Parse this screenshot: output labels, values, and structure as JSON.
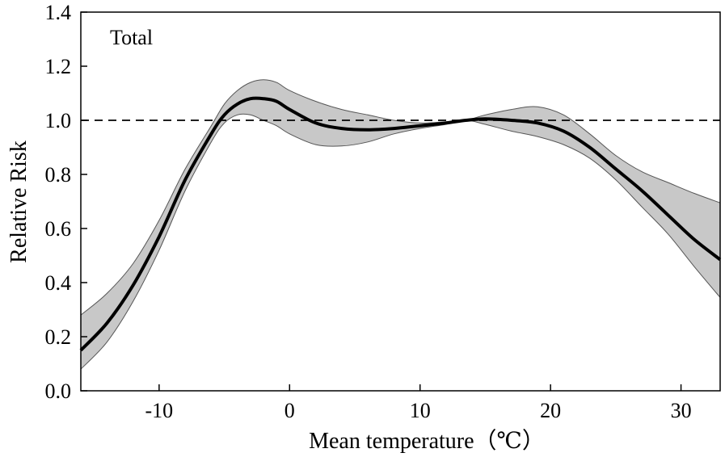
{
  "chart_data": {
    "type": "line",
    "panel_label": "Total",
    "xlabel": "Mean temperature（℃）",
    "ylabel": "Relative Risk",
    "xlim": [
      -16,
      33
    ],
    "ylim": [
      0,
      1.4
    ],
    "x_ticks": [
      -10,
      0,
      10,
      20,
      30
    ],
    "x_tick_labels": [
      "-10",
      "0",
      "10",
      "20",
      "30"
    ],
    "y_ticks": [
      0,
      0.2,
      0.4,
      0.6,
      0.8,
      1.0,
      1.2,
      1.4
    ],
    "y_tick_labels": [
      "0.0",
      "0.2",
      "0.4",
      "0.6",
      "0.8",
      "1.0",
      "1.2",
      "1.4"
    ],
    "reference_line": 1.0,
    "colors": {
      "line": "#000000",
      "band": "#c8c8c8",
      "band_edge": "#555555"
    },
    "series": [
      {
        "name": "Relative risk",
        "x": [
          -16,
          -14,
          -12,
          -10,
          -8,
          -6,
          -5,
          -4,
          -3,
          -2,
          -1,
          0,
          2,
          4,
          6,
          8,
          10,
          12,
          13.5,
          15,
          17,
          19,
          21,
          23,
          25,
          27,
          29,
          31,
          33
        ],
        "y": [
          0.15,
          0.25,
          0.39,
          0.57,
          0.78,
          0.95,
          1.02,
          1.06,
          1.08,
          1.08,
          1.07,
          1.04,
          0.99,
          0.97,
          0.965,
          0.97,
          0.98,
          0.99,
          1.0,
          1.005,
          1.0,
          0.99,
          0.96,
          0.9,
          0.82,
          0.74,
          0.65,
          0.56,
          0.485
        ],
        "lower": [
          0.08,
          0.18,
          0.33,
          0.52,
          0.74,
          0.92,
          0.99,
          1.02,
          1.02,
          1.0,
          0.98,
          0.95,
          0.91,
          0.905,
          0.92,
          0.95,
          0.97,
          0.985,
          1.0,
          0.985,
          0.96,
          0.94,
          0.91,
          0.86,
          0.78,
          0.68,
          0.58,
          0.46,
          0.345
        ],
        "upper": [
          0.28,
          0.36,
          0.47,
          0.63,
          0.82,
          0.98,
          1.06,
          1.11,
          1.14,
          1.15,
          1.14,
          1.11,
          1.07,
          1.04,
          1.02,
          1.0,
          0.99,
          0.995,
          1.0,
          1.02,
          1.04,
          1.05,
          1.02,
          0.95,
          0.87,
          0.81,
          0.77,
          0.73,
          0.695
        ]
      }
    ]
  }
}
